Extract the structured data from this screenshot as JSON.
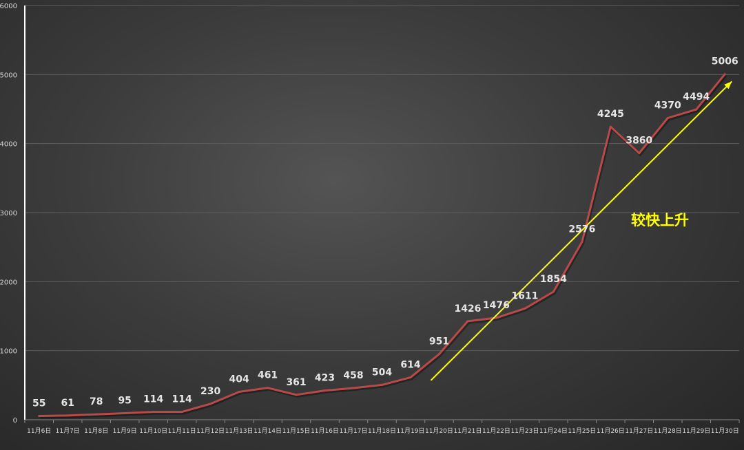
{
  "chart_data": {
    "type": "line",
    "title": "",
    "xlabel": "",
    "ylabel": "",
    "categories": [
      "11月6日",
      "11月7日",
      "11月8日",
      "11月9日",
      "11月10日",
      "11月11日",
      "11月12日",
      "11月13日",
      "11月14日",
      "11月15日",
      "11月16日",
      "11月17日",
      "11月18日",
      "11月19日",
      "11月20日",
      "11月21日",
      "11月22日",
      "11月23日",
      "11月24日",
      "11月25日",
      "11月26日",
      "11月27日",
      "11月28日",
      "11月29日",
      "11月30日"
    ],
    "series": [
      {
        "values": [
          55,
          61,
          78,
          95,
          114,
          114,
          230,
          404,
          461,
          361,
          423,
          458,
          504,
          614,
          951,
          1426,
          1476,
          1611,
          1854,
          2576,
          4245,
          3860,
          4370,
          4494,
          5006
        ]
      }
    ],
    "ylim": [
      0,
      6000
    ],
    "yticks": [
      0,
      1000,
      2000,
      3000,
      4000,
      5000,
      6000
    ],
    "grid": true,
    "legend": "none",
    "annotation": {
      "text": "较快上升",
      "color": "#ffff00"
    },
    "trend_arrow": {
      "from": {
        "x": "11月20日",
        "y": 570
      },
      "to": {
        "x": "11月30日",
        "y": 4900
      },
      "color": "#ffff00"
    },
    "colors": {
      "line": "#b84a4a",
      "axis": "#ffffff",
      "grid": "#5e5e5e",
      "text": "#d9d9d9"
    }
  }
}
